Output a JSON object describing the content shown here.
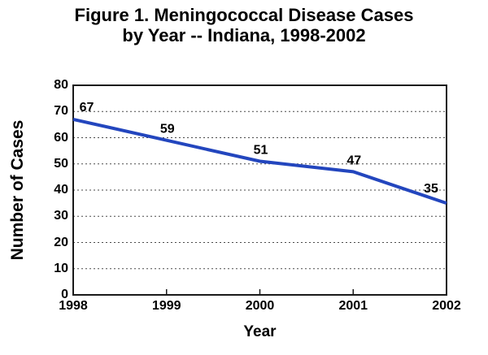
{
  "title": {
    "line1": "Figure 1. Meningococcal Disease Cases",
    "line2": "by Year -- Indiana, 1998-2002"
  },
  "chart_data": {
    "type": "line",
    "title": "Figure 1. Meningococcal Disease Cases by Year -- Indiana, 1998-2002",
    "categories": [
      "1998",
      "1999",
      "2000",
      "2001",
      "2002"
    ],
    "values": [
      67,
      59,
      51,
      47,
      35
    ],
    "xlabel": "Year",
    "ylabel": "Number of Cases",
    "ylim": [
      0,
      80
    ],
    "yticks": [
      0,
      10,
      20,
      30,
      40,
      50,
      60,
      70,
      80
    ],
    "grid": "horizontal-dotted",
    "legend": "none",
    "line_color": "#2346BE",
    "gridline_color": "#4a4a4a",
    "axis_color": "#1a1a1a",
    "text_color": "#000000"
  }
}
